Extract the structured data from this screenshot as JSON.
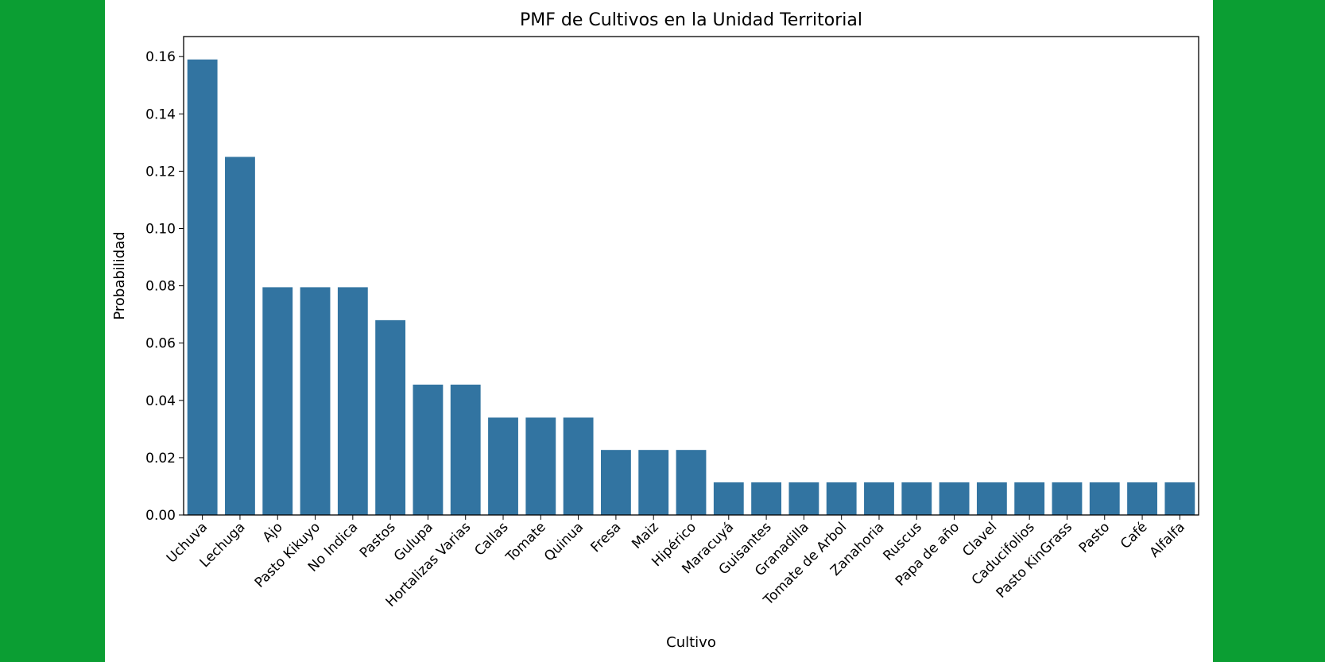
{
  "background_color": "#0b9e33",
  "panel_color": "#ffffff",
  "chart_data": {
    "type": "bar",
    "title": "PMF de Cultivos en la Unidad Territorial",
    "xlabel": "Cultivo",
    "ylabel": "Probabilidad",
    "bar_color": "#3274a1",
    "ylim": [
      0,
      0.167
    ],
    "yticks": [
      "0.00",
      "0.02",
      "0.04",
      "0.06",
      "0.08",
      "0.10",
      "0.12",
      "0.14",
      "0.16"
    ],
    "grid": false,
    "categories": [
      "Uchuva",
      "Lechuga",
      "Ajo",
      "Pasto Kikuyo",
      "No Indica",
      "Pastos",
      "Gulupa",
      "Hortalizas Varias",
      "Callas",
      "Tomate",
      "Quinua",
      "Fresa",
      "Maiz",
      "Hipérico",
      "Maracuyá",
      "Guisantes",
      "Granadilla",
      "Tomate de Arbol",
      "Zanahoria",
      "Ruscus",
      "Papa de año",
      "Clavel",
      "Caducifolios",
      "Pasto KinGrass",
      "Pasto",
      "Café",
      "Alfalfa"
    ],
    "values": [
      0.159,
      0.125,
      0.0795,
      0.0795,
      0.0795,
      0.068,
      0.0455,
      0.0455,
      0.034,
      0.034,
      0.034,
      0.0227,
      0.0227,
      0.0227,
      0.0114,
      0.0114,
      0.0114,
      0.0114,
      0.0114,
      0.0114,
      0.0114,
      0.0114,
      0.0114,
      0.0114,
      0.0114,
      0.0114,
      0.0114
    ]
  }
}
